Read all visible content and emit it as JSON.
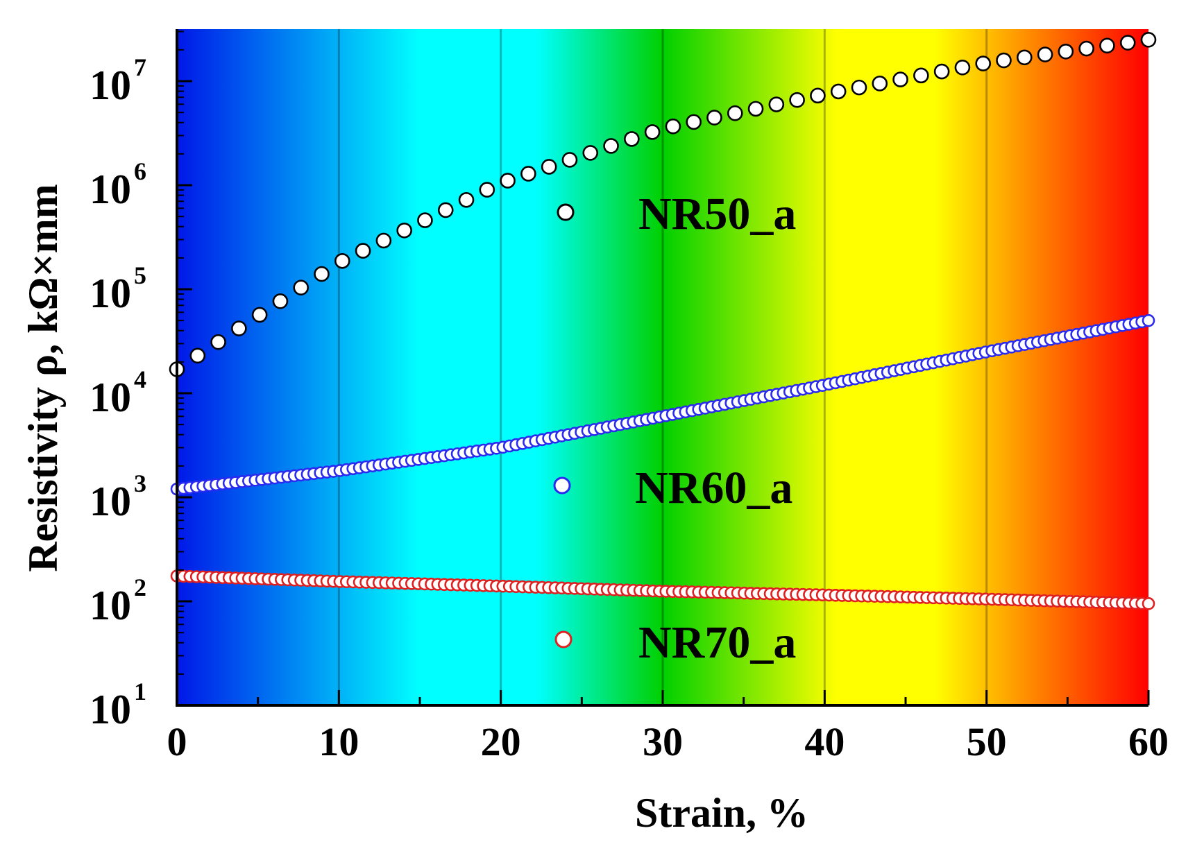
{
  "chart_data": {
    "type": "scatter",
    "title": "",
    "xlabel": "Strain, %",
    "ylabel": "Resistivity ρ, kΩ×mm",
    "xlim": [
      0,
      60
    ],
    "ylim_log10": [
      1,
      7.5
    ],
    "yscale": "log",
    "x_ticks": [
      "0",
      "10",
      "20",
      "30",
      "40",
      "50",
      "60"
    ],
    "y_ticks": [
      {
        "base": "10",
        "exp": "1"
      },
      {
        "base": "10",
        "exp": "2"
      },
      {
        "base": "10",
        "exp": "3"
      },
      {
        "base": "10",
        "exp": "4"
      },
      {
        "base": "10",
        "exp": "5"
      },
      {
        "base": "10",
        "exp": "6"
      },
      {
        "base": "10",
        "exp": "7"
      }
    ],
    "background": "rainbow gradient from blue (0%) through cyan, green, yellow, orange to red (60%)",
    "gradient_colors": [
      "#0018e8",
      "#00ffff",
      "#00ffff",
      "#00d000",
      "#ffff00",
      "#ffff00",
      "#ff8800",
      "#ff0000"
    ],
    "gradient_stops": [
      0,
      0.25,
      0.37,
      0.5,
      0.68,
      0.78,
      0.88,
      1.0
    ],
    "series": [
      {
        "name": "NR50_a",
        "marker_fill": "#ffffff",
        "marker_edge": "#000000",
        "x_start": 0,
        "x_end": 60,
        "n_points": 48,
        "anchors_x": [
          0,
          10,
          20,
          30,
          40,
          50,
          60
        ],
        "anchors_y": [
          17000,
          180000,
          1050000,
          3500000,
          7500000,
          15000000,
          25000000
        ]
      },
      {
        "name": "NR60_a",
        "marker_fill": "#ffffff",
        "marker_edge": "#2a2af0",
        "x_start": 0,
        "x_end": 60,
        "n_points": 150,
        "anchors_x": [
          0,
          10,
          20,
          30,
          40,
          50,
          60
        ],
        "anchors_y": [
          1200,
          1800,
          3000,
          6000,
          12000,
          25000,
          50000
        ]
      },
      {
        "name": "NR70_a",
        "marker_fill": "#ffffff",
        "marker_edge": "#e02020",
        "x_start": 0,
        "x_end": 60,
        "n_points": 150,
        "anchors_x": [
          0,
          10,
          20,
          30,
          40,
          50,
          60
        ],
        "anchors_y": [
          175,
          155,
          140,
          125,
          115,
          105,
          95
        ]
      }
    ],
    "legend": [
      "NR50_a",
      "NR60_a",
      "NR70_a"
    ]
  }
}
